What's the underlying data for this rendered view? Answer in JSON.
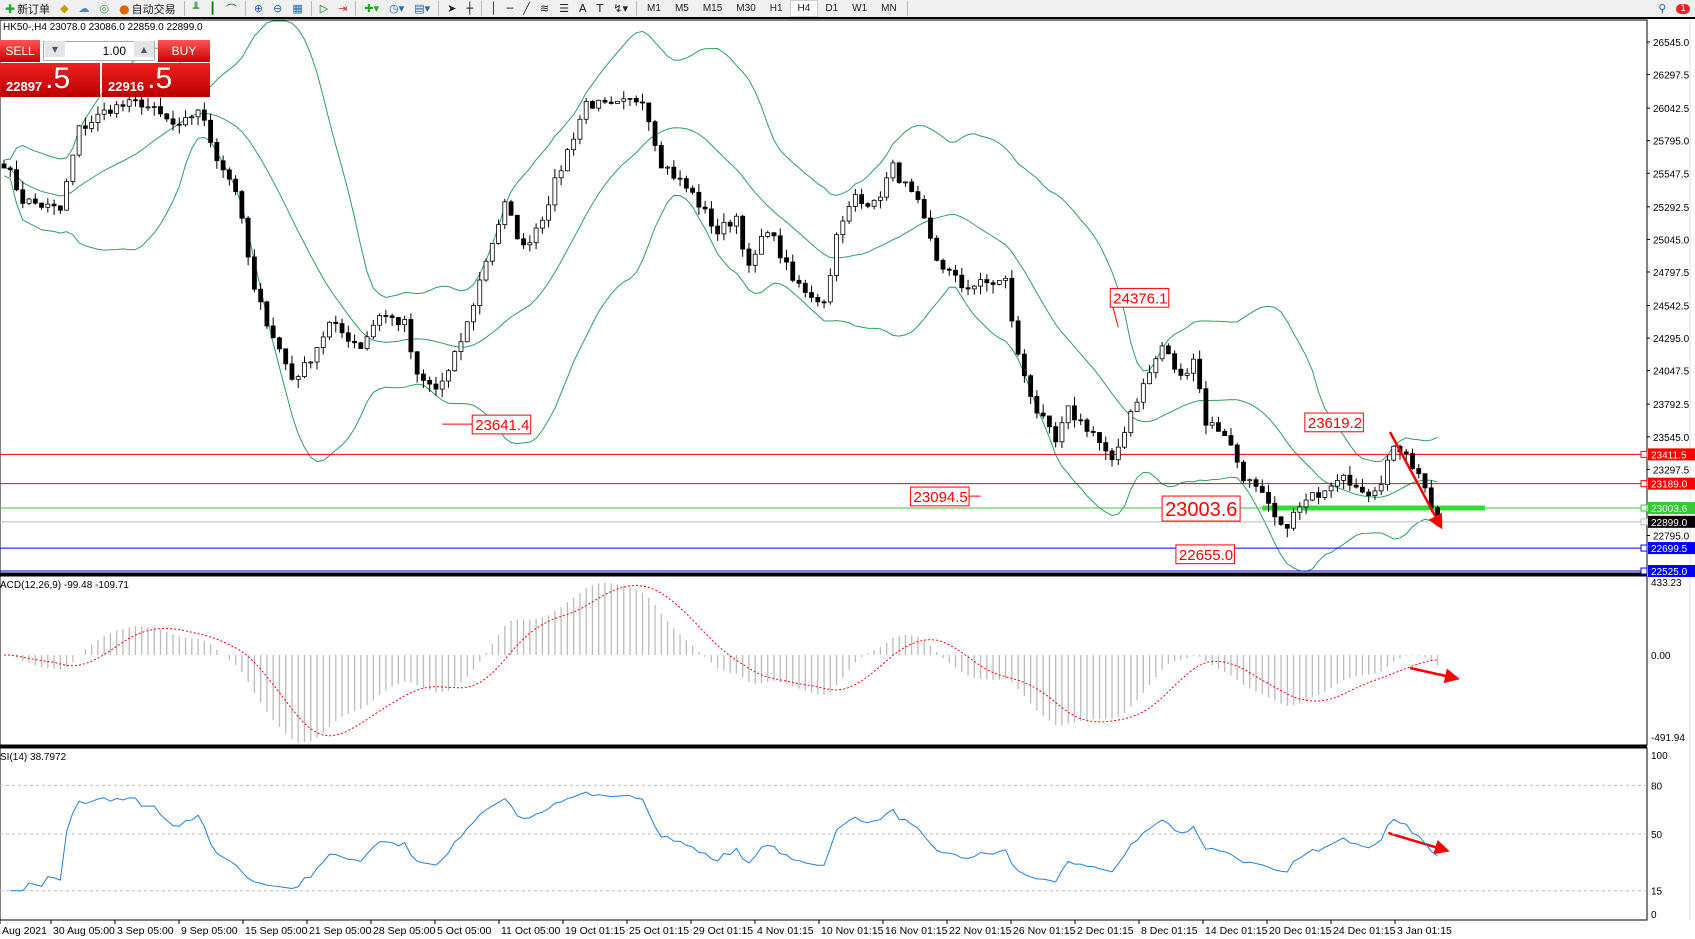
{
  "toolbar": {
    "new_order": "新订单",
    "auto_trading": "自动交易",
    "icons": [
      "new-order-icon",
      "gold-icon",
      "cloud-icon",
      "signal-icon",
      "auto-trading-icon",
      "bar-chart-icon",
      "candle-chart-icon",
      "line-chart-icon",
      "zoom-in-icon",
      "zoom-out-icon",
      "tile-icon",
      "scroll-icon",
      "shift-icon",
      "indicators-icon",
      "periods-icon",
      "templates-icon",
      "cursor-icon",
      "crosshair-icon",
      "vertical-line-icon",
      "horizontal-line-icon",
      "trendline-icon",
      "fibonacci-icon",
      "fibonacci-fan-icon",
      "text-icon",
      "label-icon",
      "arrows-icon"
    ],
    "text_tool": "A",
    "timeframes": [
      "M1",
      "M5",
      "M15",
      "M30",
      "H1",
      "H4",
      "D1",
      "W1",
      "MN"
    ],
    "selected_timeframe": "H4",
    "alert_count": "1"
  },
  "chart": {
    "symbol_info": "HK50-,H4  23078.0 23086.0 22859.0 22899.0",
    "trade_panel": {
      "sell_label": "SELL",
      "buy_label": "BUY",
      "lot": "1.00",
      "sell_main": "22897",
      "sell_pip": ".5",
      "buy_main": "22916",
      "buy_pip": ".5"
    },
    "price_axis": [
      "26545.0",
      "26297.5",
      "26042.5",
      "25795.0",
      "25547.5",
      "25292.5",
      "25045.0",
      "24797.5",
      "24542.5",
      "24295.0",
      "24047.5",
      "23792.5",
      "23545.0",
      "23297.5",
      "22795.0"
    ],
    "hlines": [
      {
        "price": 23411.5,
        "label": "23411.5",
        "color": "#ff0000"
      },
      {
        "price": 23189.0,
        "label": "23189.0",
        "color": "#ff0000"
      },
      {
        "price": 23003.6,
        "label": "23003.6",
        "color": "#33cc33"
      },
      {
        "price": 22899.0,
        "label": "22899.0",
        "color": "#000000"
      },
      {
        "price": 22699.5,
        "label": "22699.5",
        "color": "#0000ff"
      },
      {
        "price": 22525.0,
        "label": "22525.0",
        "color": "#0000ff"
      }
    ],
    "annotations": [
      "23641.4",
      "23094.5",
      "24376.1",
      "23003.6",
      "22655.0",
      "23619.2"
    ],
    "bollinger_color": "#2ca05a",
    "arrow_color": "#ff0000",
    "close_path": [
      [
        0,
        25633
      ],
      [
        3,
        25345
      ],
      [
        9,
        25263
      ],
      [
        12,
        25879
      ],
      [
        17,
        26043
      ],
      [
        22,
        26085
      ],
      [
        28,
        25879
      ],
      [
        31,
        26043
      ],
      [
        34,
        25674
      ],
      [
        37,
        25427
      ],
      [
        40,
        24646
      ],
      [
        46,
        23989
      ],
      [
        48,
        24071
      ],
      [
        52,
        24400
      ],
      [
        57,
        24235
      ],
      [
        60,
        24482
      ],
      [
        64,
        24400
      ],
      [
        66,
        23989
      ],
      [
        69,
        23906
      ],
      [
        71,
        24030
      ],
      [
        74,
        24400
      ],
      [
        77,
        24893
      ],
      [
        80,
        25304
      ],
      [
        83,
        24975
      ],
      [
        86,
        25222
      ],
      [
        90,
        25715
      ],
      [
        93,
        26085
      ],
      [
        97,
        26043
      ],
      [
        102,
        26126
      ],
      [
        105,
        25633
      ],
      [
        110,
        25386
      ],
      [
        114,
        25098
      ],
      [
        117,
        25222
      ],
      [
        119,
        24811
      ],
      [
        122,
        25139
      ],
      [
        126,
        24728
      ],
      [
        131,
        24564
      ],
      [
        133,
        25057
      ],
      [
        136,
        25386
      ],
      [
        139,
        25304
      ],
      [
        142,
        25591
      ],
      [
        146,
        25304
      ],
      [
        149,
        24893
      ],
      [
        153,
        24687
      ],
      [
        160,
        24728
      ],
      [
        162,
        24153
      ],
      [
        165,
        23742
      ],
      [
        168,
        23495
      ],
      [
        170,
        23742
      ],
      [
        174,
        23578
      ],
      [
        177,
        23331
      ],
      [
        180,
        23742
      ],
      [
        183,
        24030
      ],
      [
        185,
        24235
      ],
      [
        188,
        23989
      ],
      [
        190,
        24153
      ],
      [
        192,
        23660
      ],
      [
        195,
        23578
      ],
      [
        198,
        23249
      ],
      [
        201,
        23085
      ],
      [
        204,
        22838
      ],
      [
        207,
        23003
      ],
      [
        210,
        23126
      ],
      [
        214,
        23290
      ],
      [
        217,
        23085
      ],
      [
        220,
        23208
      ],
      [
        222,
        23496
      ],
      [
        226,
        23249
      ],
      [
        229,
        22899
      ]
    ]
  },
  "macd": {
    "label": "ACD(12,26,9) -99.48 -109.71",
    "axis": [
      "433.23",
      "0.00",
      "-491.94"
    ]
  },
  "rsi": {
    "label": "SI(14) 38.7972",
    "axis": [
      "100",
      "80",
      "50",
      "15",
      "0"
    ]
  },
  "time_axis": [
    "Aug 2021",
    "30 Aug 05:00",
    "3 Sep 05:00",
    "9 Sep 05:00",
    "15 Sep 05:00",
    "21 Sep 05:00",
    "28 Sep 05:00",
    "5 Oct 05:00",
    "11 Oct 05:00",
    "19 Oct 01:15",
    "25 Oct 01:15",
    "29 Oct 01:15",
    "4 Nov 01:15",
    "10 Nov 01:15",
    "16 Nov 01:15",
    "22 Nov 01:15",
    "26 Nov 01:15",
    "2 Dec 01:15",
    "8 Dec 01:15",
    "14 Dec 01:15",
    "20 Dec 01:15",
    "24 Dec 01:15",
    "3 Jan 01:15"
  ]
}
